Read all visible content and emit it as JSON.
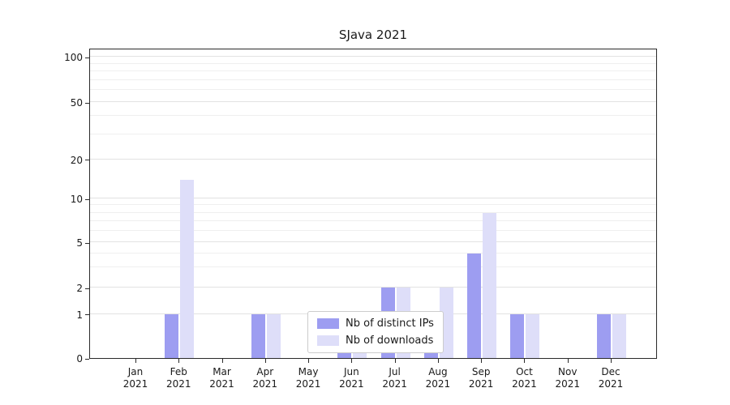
{
  "chart_data": {
    "type": "bar",
    "title": "SJava 2021",
    "categories": [
      {
        "month": "Jan",
        "year": "2021"
      },
      {
        "month": "Feb",
        "year": "2021"
      },
      {
        "month": "Mar",
        "year": "2021"
      },
      {
        "month": "Apr",
        "year": "2021"
      },
      {
        "month": "May",
        "year": "2021"
      },
      {
        "month": "Jun",
        "year": "2021"
      },
      {
        "month": "Jul",
        "year": "2021"
      },
      {
        "month": "Aug",
        "year": "2021"
      },
      {
        "month": "Sep",
        "year": "2021"
      },
      {
        "month": "Oct",
        "year": "2021"
      },
      {
        "month": "Nov",
        "year": "2021"
      },
      {
        "month": "Dec",
        "year": "2021"
      }
    ],
    "series": [
      {
        "name": "Nb of distinct IPs",
        "color": "#9d9df1",
        "values": [
          0,
          1,
          0,
          1,
          0,
          1,
          2,
          1,
          4,
          1,
          0,
          1
        ]
      },
      {
        "name": "Nb of downloads",
        "color": "#dedef9",
        "values": [
          0,
          14,
          0,
          1,
          0,
          1,
          2,
          2,
          8,
          1,
          0,
          1
        ]
      }
    ],
    "y_ticks": [
      0,
      1,
      2,
      5,
      10,
      20,
      50,
      100
    ],
    "minor_gridlines": [
      3,
      4,
      6,
      7,
      8,
      9,
      30,
      40,
      60,
      70,
      80,
      90
    ],
    "yscale": "symlog",
    "ylim": [
      0,
      115
    ],
    "grid": "horizontal",
    "legend_position": "lower center"
  }
}
